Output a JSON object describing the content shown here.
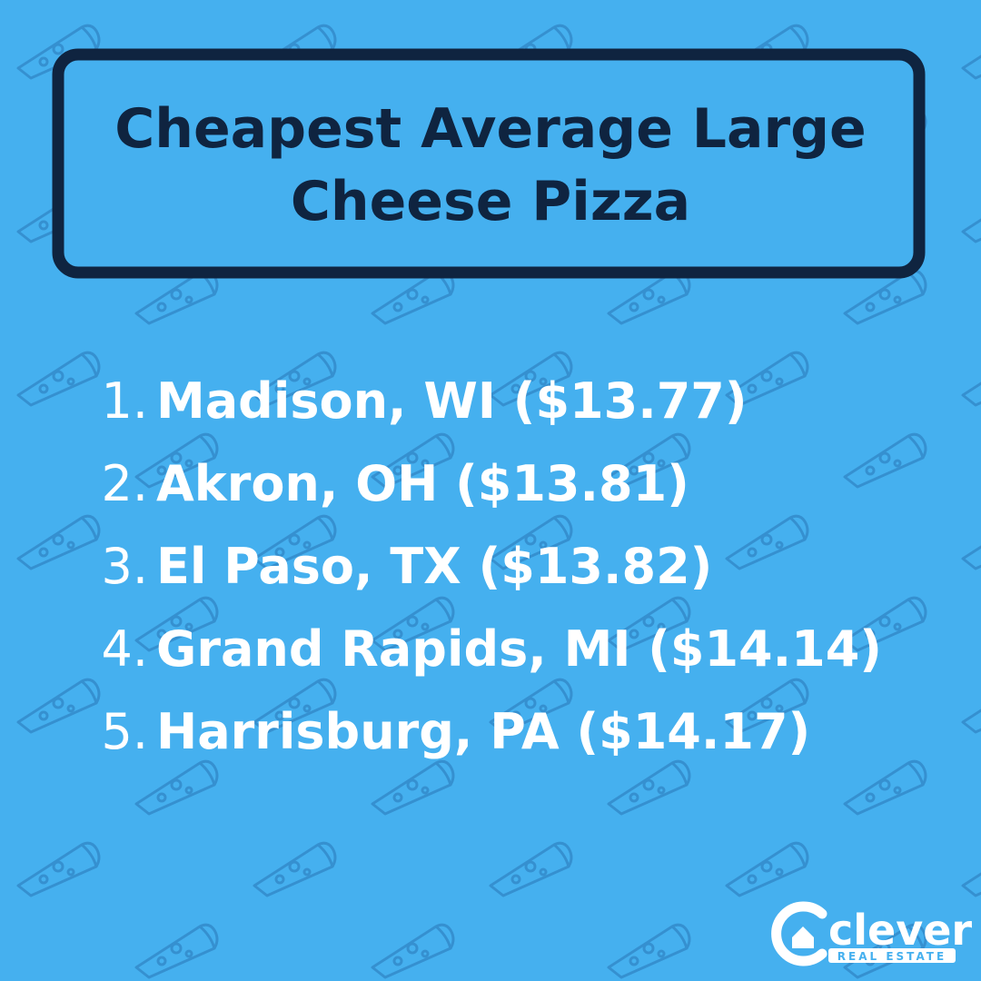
{
  "header": {
    "title_lines": [
      "Cheapest Average Large",
      "Cheese Pizza"
    ]
  },
  "list": {
    "items": [
      {
        "number": "1.",
        "text": "Madison, WI ($13.77)"
      },
      {
        "number": "2.",
        "text": "Akron, OH ($13.81)"
      },
      {
        "number": "3.",
        "text": "El Paso, TX ($13.82)"
      },
      {
        "number": "4.",
        "text": "Grand Rapids, MI ($14.14)"
      },
      {
        "number": "5.",
        "text": "Harrisburg, PA ($14.17)"
      }
    ]
  },
  "logo": {
    "brand": "clever",
    "tagline": "REAL ESTATE"
  }
}
